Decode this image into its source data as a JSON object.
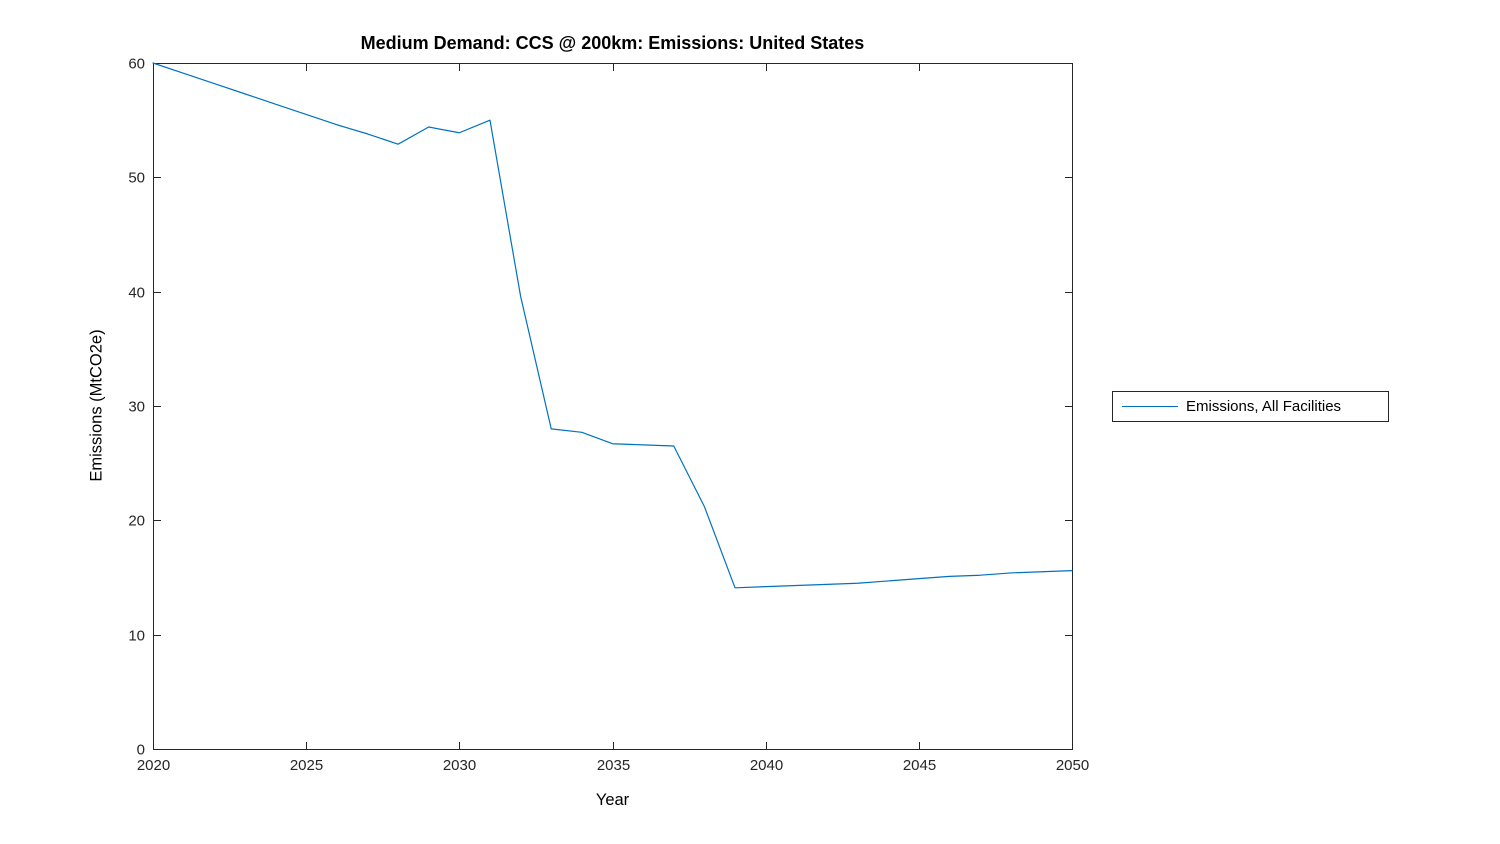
{
  "window": {
    "background": "#ffffff"
  },
  "colors": {
    "line": "#0072BD",
    "axis": "#262626",
    "tick_label": "#262626",
    "text": "#000000"
  },
  "chart_data": {
    "type": "line",
    "title": "Medium Demand: CCS @ 200km: Emissions: United States",
    "xlabel": "Year",
    "ylabel": "Emissions (MtCO2e)",
    "grid": false,
    "xlim": [
      2020,
      2050
    ],
    "ylim": [
      0,
      60
    ],
    "xticks": [
      2020,
      2025,
      2030,
      2035,
      2040,
      2045,
      2050
    ],
    "yticks": [
      0,
      10,
      20,
      30,
      40,
      50,
      60
    ],
    "legend_position": "right-outside",
    "x": [
      2020,
      2021,
      2022,
      2023,
      2024,
      2025,
      2026,
      2027,
      2028,
      2029,
      2030,
      2031,
      2032,
      2033,
      2034,
      2035,
      2036,
      2037,
      2038,
      2039,
      2040,
      2041,
      2042,
      2043,
      2044,
      2045,
      2046,
      2047,
      2048,
      2049,
      2050
    ],
    "series": [
      {
        "name": "Emissions, All Facilities",
        "color": "#0072BD",
        "values": [
          60,
          59.1,
          58.2,
          57.3,
          56.4,
          55.5,
          54.6,
          53.8,
          52.9,
          54.4,
          53.9,
          55.0,
          39.6,
          28.0,
          27.7,
          26.7,
          26.6,
          26.5,
          21.2,
          14.1,
          14.2,
          14.3,
          14.4,
          14.5,
          14.7,
          14.9,
          15.1,
          15.2,
          15.4,
          15.5,
          15.6
        ]
      }
    ]
  }
}
